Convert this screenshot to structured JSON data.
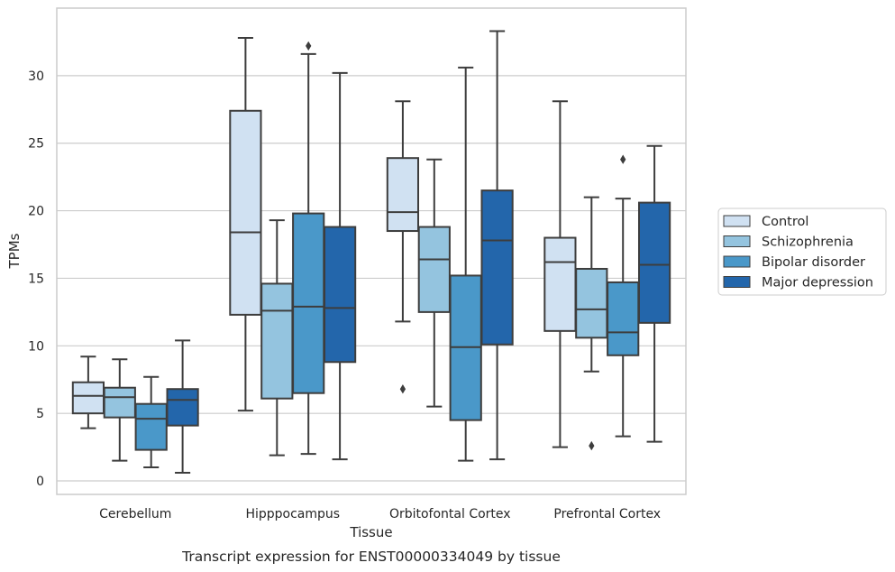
{
  "chart_data": {
    "type": "box",
    "title": "",
    "caption": "Transcript expression for ENST00000334049 by tissue",
    "xlabel": "Tissue",
    "ylabel": "TPMs",
    "ylim": [
      -1,
      35
    ],
    "yticks": [
      0,
      5,
      10,
      15,
      20,
      25,
      30
    ],
    "grid": "horizontal",
    "legend_position": "right",
    "categories": [
      "Cerebellum",
      "Hipppocampus",
      "Orbitofontal Cortex",
      "Prefrontal Cortex"
    ],
    "series": [
      {
        "name": "Control",
        "color": "#d0e1f2",
        "boxes": [
          {
            "whislo": 3.9,
            "q1": 5.0,
            "med": 6.3,
            "q3": 7.3,
            "whishi": 9.2,
            "fliers": []
          },
          {
            "whislo": 5.2,
            "q1": 12.3,
            "med": 18.4,
            "q3": 27.4,
            "whishi": 32.8,
            "fliers": []
          },
          {
            "whislo": 11.8,
            "q1": 18.5,
            "med": 19.9,
            "q3": 23.9,
            "whishi": 28.1,
            "fliers": [
              6.8
            ]
          },
          {
            "whislo": 2.5,
            "q1": 11.1,
            "med": 16.2,
            "q3": 18.0,
            "whishi": 28.1,
            "fliers": []
          }
        ]
      },
      {
        "name": "Schizophrenia",
        "color": "#94c4df",
        "boxes": [
          {
            "whislo": 1.5,
            "q1": 4.7,
            "med": 6.2,
            "q3": 6.9,
            "whishi": 9.0,
            "fliers": []
          },
          {
            "whislo": 1.9,
            "q1": 6.1,
            "med": 12.6,
            "q3": 14.6,
            "whishi": 19.3,
            "fliers": []
          },
          {
            "whislo": 5.5,
            "q1": 12.5,
            "med": 16.4,
            "q3": 18.8,
            "whishi": 23.8,
            "fliers": []
          },
          {
            "whislo": 8.1,
            "q1": 10.6,
            "med": 12.7,
            "q3": 15.7,
            "whishi": 21.0,
            "fliers": [
              2.6
            ]
          }
        ]
      },
      {
        "name": "Bipolar disorder",
        "color": "#4a98c9",
        "boxes": [
          {
            "whislo": 1.0,
            "q1": 2.3,
            "med": 4.6,
            "q3": 5.7,
            "whishi": 7.7,
            "fliers": []
          },
          {
            "whislo": 2.0,
            "q1": 6.5,
            "med": 12.9,
            "q3": 19.8,
            "whishi": 31.6,
            "fliers": [
              32.2
            ]
          },
          {
            "whislo": 1.5,
            "q1": 4.5,
            "med": 9.9,
            "q3": 15.2,
            "whishi": 30.6,
            "fliers": []
          },
          {
            "whislo": 3.3,
            "q1": 9.3,
            "med": 11.0,
            "q3": 14.7,
            "whishi": 20.9,
            "fliers": [
              23.8
            ]
          }
        ]
      },
      {
        "name": "Major depression",
        "color": "#2366ab",
        "boxes": [
          {
            "whislo": 0.6,
            "q1": 4.1,
            "med": 6.0,
            "q3": 6.8,
            "whishi": 10.4,
            "fliers": []
          },
          {
            "whislo": 1.6,
            "q1": 8.8,
            "med": 12.8,
            "q3": 18.8,
            "whishi": 30.2,
            "fliers": []
          },
          {
            "whislo": 1.6,
            "q1": 10.1,
            "med": 17.8,
            "q3": 21.5,
            "whishi": 33.3,
            "fliers": []
          },
          {
            "whislo": 2.9,
            "q1": 11.7,
            "med": 16.0,
            "q3": 20.6,
            "whishi": 24.8,
            "fliers": []
          }
        ]
      }
    ]
  }
}
